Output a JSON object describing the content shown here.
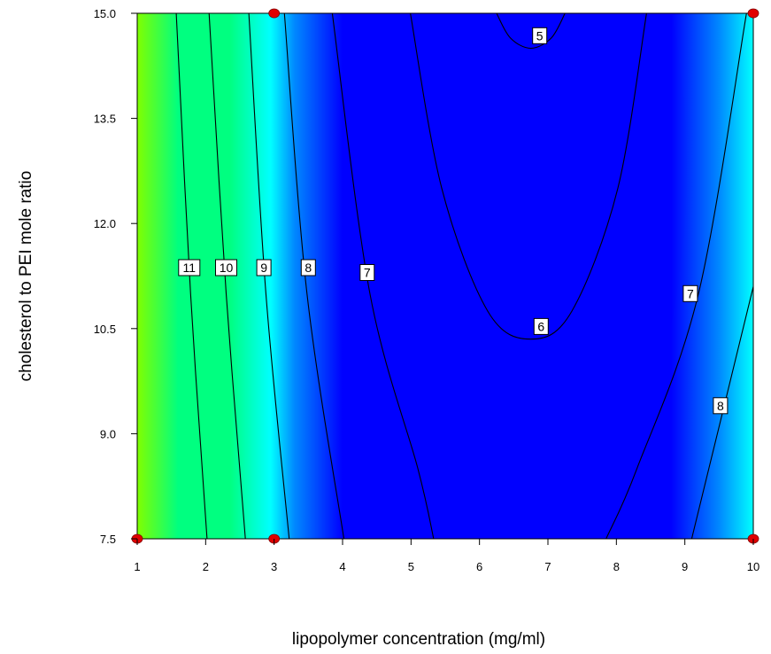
{
  "chart_data": {
    "type": "contour",
    "title": "",
    "xlabel": "lipopolymer concentration (mg/ml)",
    "ylabel": "cholesterol to PEI mole ratio",
    "xlim": [
      1,
      10
    ],
    "ylim": [
      7.5,
      15.0
    ],
    "x_ticks": [
      {
        "value": 1,
        "label": "1"
      },
      {
        "value": 2,
        "label": "2"
      },
      {
        "value": 3,
        "label": "3"
      },
      {
        "value": 4,
        "label": "4"
      },
      {
        "value": 5,
        "label": "5"
      },
      {
        "value": 6,
        "label": "6"
      },
      {
        "value": 7,
        "label": "7"
      },
      {
        "value": 8,
        "label": "8"
      },
      {
        "value": 9,
        "label": "9"
      },
      {
        "value": 10,
        "label": "10"
      }
    ],
    "y_ticks": [
      {
        "value": 7.5,
        "label": "7.5"
      },
      {
        "value": 9.0,
        "label": "9.0"
      },
      {
        "value": 10.5,
        "label": "10.5"
      },
      {
        "value": 12.0,
        "label": "12.0"
      },
      {
        "value": 13.5,
        "label": "13.5"
      },
      {
        "value": 15.0,
        "label": "15.0"
      }
    ],
    "grid": false,
    "legend": "none",
    "colormap": [
      "#0000ff",
      "#0088ff",
      "#00ffff",
      "#00ff80",
      "#80ff00"
    ],
    "contours": [
      {
        "label": "11",
        "label_at": [
          1.76,
          11.37
        ],
        "points": [
          [
            1.57,
            15.0
          ],
          [
            1.78,
            11.0
          ],
          [
            2.02,
            7.5
          ]
        ]
      },
      {
        "label": "10",
        "label_at": [
          2.3,
          11.37
        ],
        "points": [
          [
            2.05,
            15.0
          ],
          [
            2.3,
            11.0
          ],
          [
            2.58,
            7.5
          ]
        ]
      },
      {
        "label": "9",
        "label_at": [
          2.85,
          11.37
        ],
        "points": [
          [
            2.63,
            15.0
          ],
          [
            2.88,
            11.0
          ],
          [
            3.22,
            7.5
          ]
        ]
      },
      {
        "label": "8",
        "label_at": [
          3.5,
          11.37
        ],
        "points": [
          [
            3.15,
            15.0
          ],
          [
            3.48,
            11.0
          ],
          [
            4.02,
            7.5
          ]
        ]
      },
      {
        "label": "7",
        "label_at": [
          4.36,
          11.3
        ],
        "points": [
          [
            3.85,
            15.0
          ],
          [
            4.4,
            11.0
          ],
          [
            5.1,
            8.5
          ],
          [
            5.33,
            7.5
          ]
        ]
      },
      {
        "label": "7",
        "label_at": [
          9.08,
          11.0
        ],
        "points": [
          [
            9.9,
            15.0
          ],
          [
            9.2,
            11.0
          ],
          [
            8.3,
            8.5
          ],
          [
            7.85,
            7.5
          ]
        ]
      },
      {
        "label": "6",
        "label_at": [
          6.9,
          10.53
        ],
        "points": [
          [
            4.99,
            15.0
          ],
          [
            5.45,
            12.5
          ],
          [
            6.12,
            10.75
          ],
          [
            6.75,
            10.35
          ],
          [
            7.35,
            10.75
          ],
          [
            8.02,
            12.5
          ],
          [
            8.44,
            15.0
          ]
        ]
      },
      {
        "label": "5",
        "label_at": [
          6.88,
          14.68
        ],
        "points": [
          [
            6.25,
            15.0
          ],
          [
            6.45,
            14.65
          ],
          [
            6.75,
            14.5
          ],
          [
            7.05,
            14.65
          ],
          [
            7.25,
            15.0
          ]
        ]
      },
      {
        "label": "8",
        "label_at": [
          9.52,
          9.4
        ],
        "points": [
          [
            10.0,
            11.1
          ],
          [
            9.6,
            9.5
          ],
          [
            9.1,
            7.5
          ]
        ]
      }
    ],
    "design_points": [
      [
        1,
        7.5
      ],
      [
        3,
        7.5
      ],
      [
        10,
        7.5
      ],
      [
        3,
        15.0
      ],
      [
        10,
        15.0
      ]
    ]
  }
}
